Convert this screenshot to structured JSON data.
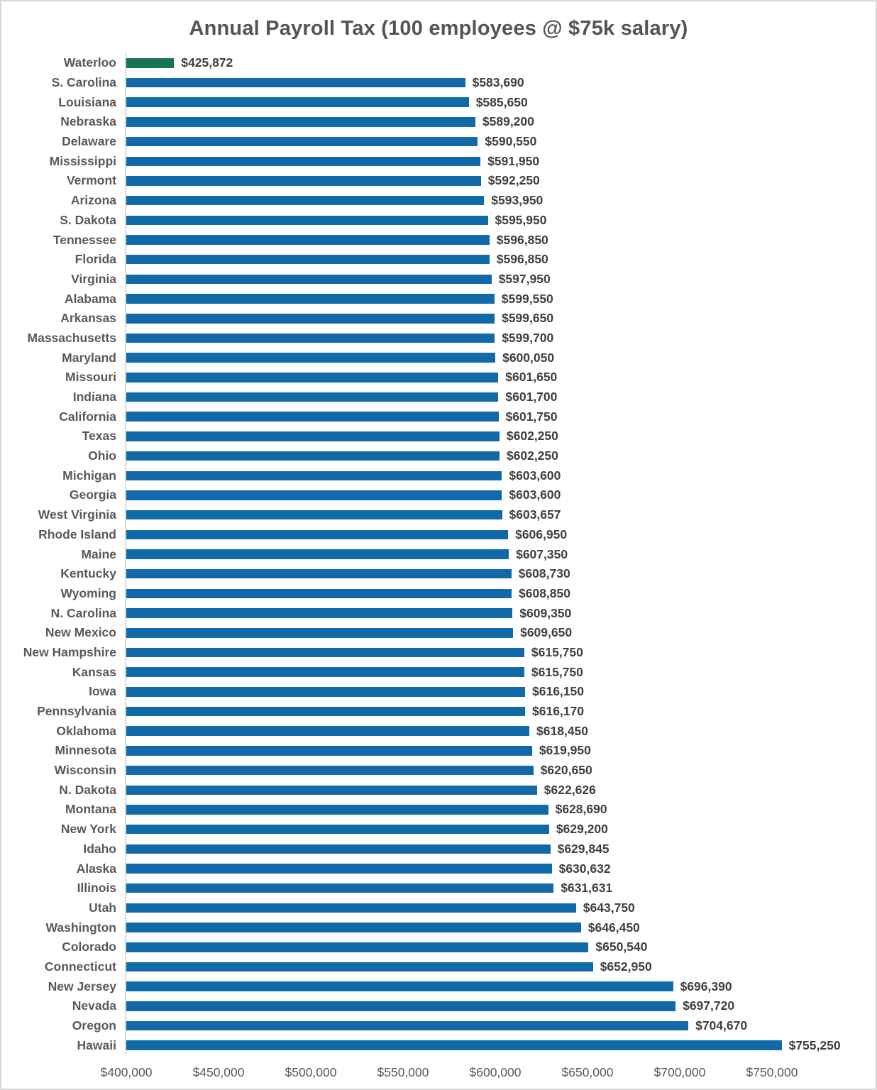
{
  "chart_data": {
    "type": "bar",
    "orientation": "horizontal",
    "title": "Annual Payroll Tax (100 employees @ $75k salary)",
    "legend": "none",
    "grid": "off",
    "highlight_index": 0,
    "categories": [
      "Waterloo",
      "S. Carolina",
      "Louisiana",
      "Nebraska",
      "Delaware",
      "Mississippi",
      "Vermont",
      "Arizona",
      "S. Dakota",
      "Tennessee",
      "Florida",
      "Virginia",
      "Alabama",
      "Arkansas",
      "Massachusetts",
      "Maryland",
      "Missouri",
      "Indiana",
      "California",
      "Texas",
      "Ohio",
      "Michigan",
      "Georgia",
      "West Virginia",
      "Rhode Island",
      "Maine",
      "Kentucky",
      "Wyoming",
      "N. Carolina",
      "New Mexico",
      "New Hampshire",
      "Kansas",
      "Iowa",
      "Pennsylvania",
      "Oklahoma",
      "Minnesota",
      "Wisconsin",
      "N. Dakota",
      "Montana",
      "New York",
      "Idaho",
      "Alaska",
      "Illinois",
      "Utah",
      "Washington",
      "Colorado",
      "Connecticut",
      "New Jersey",
      "Nevada",
      "Oregon",
      "Hawaii"
    ],
    "values": [
      425872,
      583690,
      585650,
      589200,
      590550,
      591950,
      592250,
      593950,
      595950,
      596850,
      596850,
      597950,
      599550,
      599650,
      599700,
      600050,
      601650,
      601700,
      601750,
      602250,
      602250,
      603600,
      603600,
      603657,
      606950,
      607350,
      608730,
      608850,
      609350,
      609650,
      615750,
      615750,
      616150,
      616170,
      618450,
      619950,
      620650,
      622626,
      628690,
      629200,
      629845,
      630632,
      631631,
      643750,
      646450,
      650540,
      652950,
      696390,
      697720,
      704670,
      755250
    ],
    "value_labels": [
      "$425,872",
      "$583,690",
      "$585,650",
      "$589,200",
      "$590,550",
      "$591,950",
      "$592,250",
      "$593,950",
      "$595,950",
      "$596,850",
      "$596,850",
      "$597,950",
      "$599,550",
      "$599,650",
      "$599,700",
      "$600,050",
      "$601,650",
      "$601,700",
      "$601,750",
      "$602,250",
      "$602,250",
      "$603,600",
      "$603,600",
      "$603,657",
      "$606,950",
      "$607,350",
      "$608,730",
      "$608,850",
      "$609,350",
      "$609,650",
      "$615,750",
      "$615,750",
      "$616,150",
      "$616,170",
      "$618,450",
      "$619,950",
      "$620,650",
      "$622,626",
      "$628,690",
      "$629,200",
      "$629,845",
      "$630,632",
      "$631,631",
      "$643,750",
      "$646,450",
      "$650,540",
      "$652,950",
      "$696,390",
      "$697,720",
      "$704,670",
      "$755,250"
    ],
    "x_axis": {
      "min": 400000,
      "max": 805000,
      "tick_step": 50000,
      "ticks": [
        {
          "value": 400000,
          "label": "$400,000"
        },
        {
          "value": 450000,
          "label": "$450,000"
        },
        {
          "value": 500000,
          "label": "$500,000"
        },
        {
          "value": 550000,
          "label": "$550,000"
        },
        {
          "value": 600000,
          "label": "$600,000"
        },
        {
          "value": 650000,
          "label": "$650,000"
        },
        {
          "value": 700000,
          "label": "$700,000"
        },
        {
          "value": 750000,
          "label": "$750,000"
        }
      ]
    },
    "colors": {
      "bar": "#1169a8",
      "highlight": "#17754f",
      "title_text": "#545454",
      "category_text": "#595959",
      "value_text": "#3f3f3f",
      "tick_text": "#595959",
      "axis_line": "#d9d9d9"
    }
  }
}
